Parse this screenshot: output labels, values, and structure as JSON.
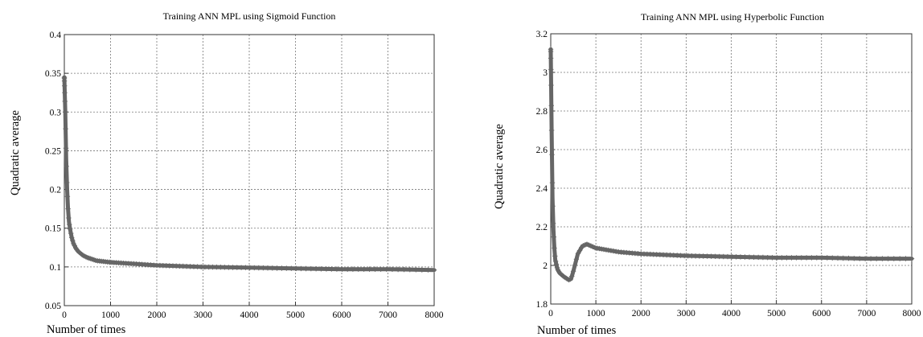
{
  "chart_data": [
    {
      "type": "line",
      "title": "Training ANN MPL using Sigmoid Function",
      "xlabel": "Number of times",
      "ylabel": "Quadratic average",
      "xlim": [
        0,
        8000
      ],
      "ylim": [
        0.05,
        0.4
      ],
      "xticks": [
        0,
        1000,
        2000,
        3000,
        4000,
        5000,
        6000,
        7000,
        8000
      ],
      "yticks": [
        0.05,
        0.1,
        0.15,
        0.2,
        0.25,
        0.3,
        0.35,
        0.4
      ],
      "xtick_labels": [
        "0",
        "1000",
        "2000",
        "3000",
        "4000",
        "5000",
        "6000",
        "7000",
        "8000"
      ],
      "ytick_labels": [
        "0.05",
        "0.1",
        "0.15",
        "0.2",
        "0.25",
        "0.3",
        "0.35",
        "0.4"
      ],
      "grid": true,
      "series": [
        {
          "marker": "plus",
          "x": [
            0,
            20,
            40,
            60,
            80,
            100,
            130,
            160,
            200,
            250,
            300,
            400,
            500,
            700,
            1000,
            1500,
            2000,
            3000,
            4000,
            5000,
            6000,
            7000,
            8000
          ],
          "y": [
            0.345,
            0.3,
            0.24,
            0.2,
            0.175,
            0.158,
            0.147,
            0.138,
            0.13,
            0.124,
            0.12,
            0.115,
            0.112,
            0.108,
            0.106,
            0.104,
            0.102,
            0.1,
            0.099,
            0.098,
            0.097,
            0.097,
            0.096
          ]
        }
      ]
    },
    {
      "type": "line",
      "title": "Training ANN MPL using Hyperbolic Function",
      "xlabel": "Number of times",
      "ylabel": "Quadratic average",
      "xlim": [
        0,
        8000
      ],
      "ylim": [
        1.8,
        3.2
      ],
      "xticks": [
        0,
        1000,
        2000,
        3000,
        4000,
        5000,
        6000,
        7000,
        8000
      ],
      "yticks": [
        1.8,
        2,
        2.2,
        2.4,
        2.6,
        2.8,
        3,
        3.2
      ],
      "xtick_labels": [
        "0",
        "1000",
        "2000",
        "3000",
        "4000",
        "5000",
        "6000",
        "7000",
        "8000"
      ],
      "ytick_labels": [
        "1.8",
        "2",
        "2.2",
        "2.4",
        "2.6",
        "2.8",
        "3",
        "3.2"
      ],
      "grid": true,
      "series": [
        {
          "marker": "plus",
          "x": [
            0,
            20,
            40,
            60,
            80,
            100,
            150,
            200,
            300,
            400,
            450,
            500,
            600,
            700,
            800,
            1000,
            1500,
            2000,
            3000,
            4000,
            5000,
            6000,
            7000,
            8000
          ],
          "y": [
            3.12,
            2.7,
            2.35,
            2.18,
            2.09,
            2.03,
            1.98,
            1.96,
            1.94,
            1.925,
            1.93,
            1.97,
            2.06,
            2.1,
            2.11,
            2.09,
            2.07,
            2.06,
            2.05,
            2.045,
            2.04,
            2.04,
            2.035,
            2.035
          ]
        }
      ]
    }
  ]
}
